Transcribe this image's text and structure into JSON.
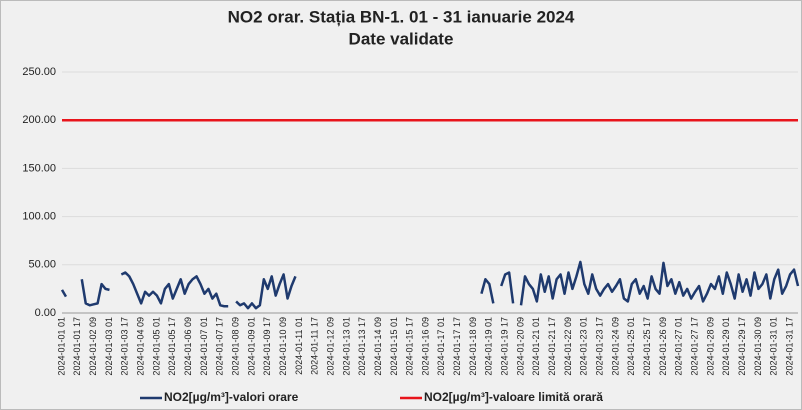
{
  "chart_data": {
    "type": "line",
    "title": "NO2 orar. Stația BN-1. 01 - 31 ianuarie 2024",
    "subtitle": "Date validate",
    "categories": [
      "2024-01-01 01",
      null,
      null,
      null,
      "2024-01-01 17",
      null,
      null,
      null,
      "2024-01-02 09",
      null,
      null,
      null,
      "2024-01-03 01",
      null,
      null,
      null,
      "2024-01-03 17",
      null,
      null,
      null,
      "2024-01-04 09",
      null,
      null,
      null,
      "2024-01-05 01",
      null,
      null,
      null,
      "2024-01-05 17",
      null,
      null,
      null,
      "2024-01-06 09",
      null,
      null,
      null,
      "2024-01-07 01",
      null,
      null,
      null,
      "2024-01-07 17",
      null,
      null,
      null,
      "2024-01-08 09",
      null,
      null,
      null,
      "2024-01-09 01",
      null,
      null,
      null,
      "2024-01-09 17",
      null,
      null,
      null,
      "2024-01-10 09",
      null,
      null,
      null,
      "2024-01-11 01",
      null,
      null,
      null,
      "2024-01-11 17",
      null,
      null,
      null,
      "2024-01-12 09",
      null,
      null,
      null,
      "2024-01-13 01",
      null,
      null,
      null,
      "2024-01-13 17",
      null,
      null,
      null,
      "2024-01-14 09",
      null,
      null,
      null,
      "2024-01-15 01",
      null,
      null,
      null,
      "2024-01-15 17",
      null,
      null,
      null,
      "2024-01-16 09",
      null,
      null,
      null,
      "2024-01-17 01",
      null,
      null,
      null,
      "2024-01-17 17",
      null,
      null,
      null,
      "2024-01-18 09",
      null,
      null,
      null,
      "2024-01-19 01",
      null,
      null,
      null,
      "2024-01-19 17",
      null,
      null,
      null,
      "2024-01-20 09",
      null,
      null,
      null,
      "2024-01-21 01",
      null,
      null,
      null,
      "2024-01-21 17",
      null,
      null,
      null,
      "2024-01-22 09",
      null,
      null,
      null,
      "2024-01-23 01",
      null,
      null,
      null,
      "2024-01-23 17",
      null,
      null,
      null,
      "2024-01-24 09",
      null,
      null,
      null,
      "2024-01-25 01",
      null,
      null,
      null,
      "2024-01-25 17",
      null,
      null,
      null,
      "2024-01-26 09",
      null,
      null,
      null,
      "2024-01-27 01",
      null,
      null,
      null,
      "2024-01-27 17",
      null,
      null,
      null,
      "2024-01-28 09",
      null,
      null,
      null,
      "2024-01-29 01",
      null,
      null,
      null,
      "2024-01-29 17",
      null,
      null,
      null,
      "2024-01-30 09",
      null,
      null,
      null,
      "2024-01-31 01",
      null,
      null,
      null,
      "2024-01-31 17",
      null,
      null
    ],
    "series": [
      {
        "name": "NO2[µg/m³]-valori orare",
        "color": "#1f3a6e",
        "values": [
          24,
          17,
          null,
          null,
          null,
          35,
          10,
          8,
          9,
          10,
          30,
          25,
          24,
          null,
          null,
          40,
          42,
          38,
          30,
          20,
          10,
          22,
          18,
          22,
          18,
          10,
          25,
          30,
          15,
          25,
          35,
          20,
          30,
          35,
          38,
          30,
          20,
          25,
          15,
          20,
          8,
          7,
          7,
          null,
          12,
          8,
          10,
          5,
          10,
          5,
          8,
          35,
          25,
          38,
          18,
          30,
          40,
          15,
          28,
          38,
          null,
          null,
          null,
          null,
          null,
          null,
          null,
          null,
          null,
          null,
          null,
          null,
          null,
          null,
          null,
          null,
          null,
          null,
          null,
          null,
          null,
          null,
          null,
          null,
          null,
          null,
          null,
          null,
          null,
          null,
          null,
          null,
          null,
          null,
          null,
          null,
          null,
          null,
          null,
          null,
          null,
          null,
          null,
          null,
          null,
          null,
          20,
          35,
          30,
          10,
          null,
          28,
          40,
          42,
          10,
          null,
          8,
          38,
          30,
          25,
          12,
          40,
          22,
          38,
          15,
          35,
          40,
          20,
          42,
          25,
          38,
          53,
          30,
          20,
          40,
          25,
          18,
          25,
          30,
          22,
          28,
          35,
          15,
          12,
          30,
          35,
          20,
          28,
          15,
          38,
          25,
          20,
          52,
          28,
          35,
          20,
          32,
          18,
          25,
          15,
          22,
          28,
          12,
          20,
          30,
          25,
          38,
          20,
          42,
          30,
          15,
          40,
          22,
          35,
          18,
          42,
          25,
          30,
          40,
          15,
          35,
          45,
          20,
          28,
          40,
          45,
          28
        ]
      }
    ],
    "reference_lines": [
      {
        "name": "NO2[µg/m³]-valoare limită orară",
        "color": "#e8141b",
        "value": 200
      }
    ],
    "ylim": [
      0,
      250
    ],
    "yticks": [
      {
        "value": 0,
        "label": "0.00"
      },
      {
        "value": 50,
        "label": "50.00"
      },
      {
        "value": 100,
        "label": "100.00"
      },
      {
        "value": 150,
        "label": "150.00"
      },
      {
        "value": 200,
        "label": "200.00"
      },
      {
        "value": 250,
        "label": "250.00"
      }
    ],
    "grid": true
  }
}
